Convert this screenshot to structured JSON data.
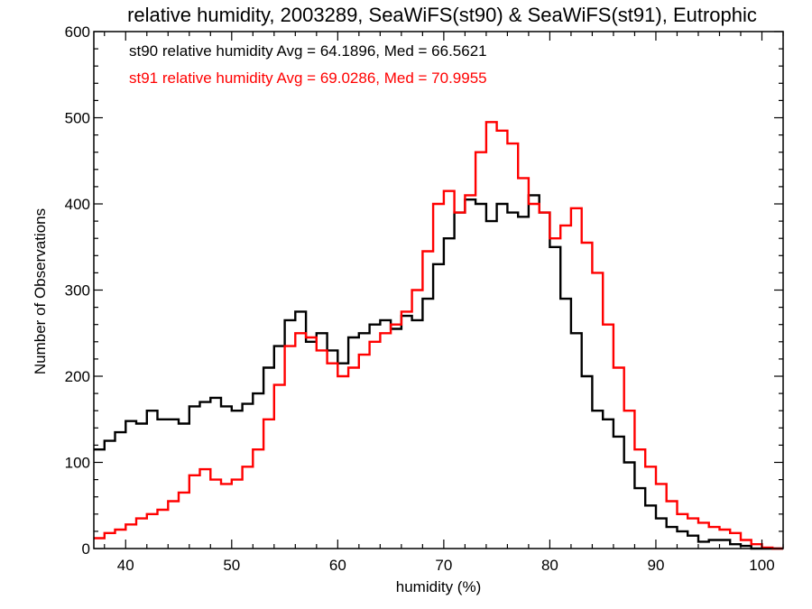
{
  "chart_data": {
    "type": "line",
    "title": "relative humidity, 2003289, SeaWiFS(st90) & SeaWiFS(st91), Eutrophic",
    "xlabel": "humidity (%)",
    "ylabel": "Number of Observations",
    "xlim": [
      37,
      102
    ],
    "ylim": [
      0,
      600
    ],
    "x_ticks": [
      "40",
      "50",
      "60",
      "70",
      "80",
      "90",
      "100"
    ],
    "y_ticks": [
      "0",
      "100",
      "200",
      "300",
      "400",
      "500",
      "600"
    ],
    "grid": false,
    "step": "histogram",
    "annotations": [
      {
        "text": "st90 relative humidity Avg = 64.1896, Med = 66.5621",
        "color": "#000000"
      },
      {
        "text": "st91 relative humidity Avg = 69.0286, Med = 70.9955",
        "color": "#ff0000"
      }
    ],
    "series": [
      {
        "color": "#000000",
        "points": [
          [
            37,
            115
          ],
          [
            38,
            125
          ],
          [
            39,
            135
          ],
          [
            40,
            148
          ],
          [
            41,
            145
          ],
          [
            42,
            160
          ],
          [
            43,
            150
          ],
          [
            44,
            150
          ],
          [
            45,
            145
          ],
          [
            46,
            165
          ],
          [
            47,
            170
          ],
          [
            48,
            175
          ],
          [
            49,
            165
          ],
          [
            50,
            160
          ],
          [
            51,
            168
          ],
          [
            52,
            180
          ],
          [
            53,
            210
          ],
          [
            54,
            235
          ],
          [
            55,
            265
          ],
          [
            56,
            275
          ],
          [
            57,
            240
          ],
          [
            58,
            250
          ],
          [
            59,
            230
          ],
          [
            60,
            215
          ],
          [
            61,
            245
          ],
          [
            62,
            250
          ],
          [
            63,
            260
          ],
          [
            64,
            265
          ],
          [
            65,
            255
          ],
          [
            66,
            270
          ],
          [
            67,
            265
          ],
          [
            68,
            290
          ],
          [
            69,
            330
          ],
          [
            70,
            360
          ],
          [
            71,
            390
          ],
          [
            72,
            405
          ],
          [
            73,
            400
          ],
          [
            74,
            380
          ],
          [
            75,
            400
          ],
          [
            76,
            390
          ],
          [
            77,
            385
          ],
          [
            78,
            410
          ],
          [
            79,
            390
          ],
          [
            80,
            350
          ],
          [
            81,
            290
          ],
          [
            82,
            250
          ],
          [
            83,
            200
          ],
          [
            84,
            160
          ],
          [
            85,
            150
          ],
          [
            86,
            130
          ],
          [
            87,
            100
          ],
          [
            88,
            70
          ],
          [
            89,
            50
          ],
          [
            90,
            35
          ],
          [
            91,
            25
          ],
          [
            92,
            20
          ],
          [
            93,
            15
          ],
          [
            94,
            8
          ],
          [
            95,
            10
          ],
          [
            96,
            10
          ],
          [
            97,
            5
          ],
          [
            98,
            3
          ],
          [
            99,
            0
          ],
          [
            100,
            0
          ],
          [
            101,
            0
          ],
          [
            102,
            0
          ]
        ]
      },
      {
        "color": "#ff0000",
        "points": [
          [
            37,
            12
          ],
          [
            38,
            18
          ],
          [
            39,
            22
          ],
          [
            40,
            28
          ],
          [
            41,
            35
          ],
          [
            42,
            40
          ],
          [
            43,
            45
          ],
          [
            44,
            55
          ],
          [
            45,
            65
          ],
          [
            46,
            85
          ],
          [
            47,
            92
          ],
          [
            48,
            80
          ],
          [
            49,
            75
          ],
          [
            50,
            80
          ],
          [
            51,
            95
          ],
          [
            52,
            115
          ],
          [
            53,
            150
          ],
          [
            54,
            190
          ],
          [
            55,
            235
          ],
          [
            56,
            250
          ],
          [
            57,
            245
          ],
          [
            58,
            230
          ],
          [
            59,
            215
          ],
          [
            60,
            200
          ],
          [
            61,
            210
          ],
          [
            62,
            225
          ],
          [
            63,
            240
          ],
          [
            64,
            250
          ],
          [
            65,
            260
          ],
          [
            66,
            275
          ],
          [
            67,
            300
          ],
          [
            68,
            345
          ],
          [
            69,
            400
          ],
          [
            70,
            415
          ],
          [
            71,
            390
          ],
          [
            72,
            410
          ],
          [
            73,
            460
          ],
          [
            74,
            495
          ],
          [
            75,
            485
          ],
          [
            76,
            470
          ],
          [
            77,
            430
          ],
          [
            78,
            400
          ],
          [
            79,
            390
          ],
          [
            80,
            360
          ],
          [
            81,
            375
          ],
          [
            82,
            395
          ],
          [
            83,
            355
          ],
          [
            84,
            320
          ],
          [
            85,
            260
          ],
          [
            86,
            210
          ],
          [
            87,
            160
          ],
          [
            88,
            115
          ],
          [
            89,
            95
          ],
          [
            90,
            75
          ],
          [
            91,
            55
          ],
          [
            92,
            40
          ],
          [
            93,
            35
          ],
          [
            94,
            30
          ],
          [
            95,
            25
          ],
          [
            96,
            22
          ],
          [
            97,
            18
          ],
          [
            98,
            10
          ],
          [
            99,
            5
          ],
          [
            100,
            1
          ],
          [
            101,
            0
          ],
          [
            102,
            0
          ]
        ]
      }
    ]
  }
}
